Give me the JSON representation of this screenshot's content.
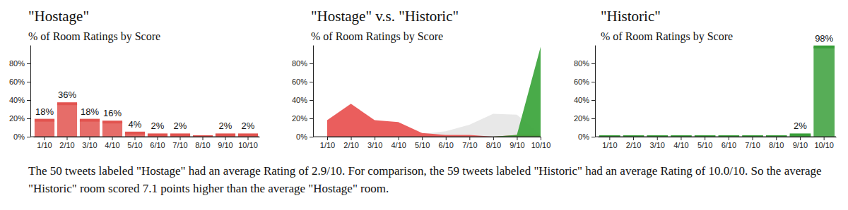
{
  "chart_data": [
    {
      "type": "bar",
      "title": "\"Hostage\"",
      "subtitle": "% of Room Ratings by Score",
      "categories": [
        "1/10",
        "2/10",
        "3/10",
        "4/10",
        "5/10",
        "6/10",
        "7/10",
        "8/10",
        "9/10",
        "10/10"
      ],
      "values": [
        18,
        36,
        18,
        16,
        4,
        2,
        2,
        0,
        2,
        2
      ],
      "value_labels": [
        "18%",
        "36%",
        "18%",
        "16%",
        "4%",
        "2%",
        "2%",
        null,
        "2%",
        "2%"
      ],
      "data_labels": true,
      "color": "#e2534f",
      "ylim": [
        0,
        100
      ],
      "yticks": [
        {
          "value": 0,
          "label": "0%"
        },
        {
          "value": 20,
          "label": "20%"
        },
        {
          "value": 40,
          "label": "40%"
        },
        {
          "value": 60,
          "label": "60%"
        },
        {
          "value": 80,
          "label": "80%"
        }
      ]
    },
    {
      "type": "area",
      "title": "\"Hostage\" v.s. \"Historic\"",
      "subtitle": "% of Room Ratings by Score",
      "categories": [
        "1/10",
        "2/10",
        "3/10",
        "4/10",
        "5/10",
        "6/10",
        "7/10",
        "8/10",
        "9/10",
        "10/10"
      ],
      "series": [
        {
          "color": "#e6e6e6",
          "values": [
            0,
            0,
            0,
            0,
            3,
            6,
            13,
            25,
            24,
            2
          ]
        },
        {
          "color": "#e8504f",
          "values": [
            18,
            36,
            18,
            16,
            4,
            2,
            2,
            0,
            2,
            2
          ]
        },
        {
          "color": "#3aa43a",
          "values": [
            0,
            0,
            0,
            0,
            0,
            0,
            0,
            0,
            2,
            98
          ]
        }
      ],
      "ylim": [
        0,
        100
      ],
      "yticks": [
        {
          "value": 0,
          "label": "0%"
        },
        {
          "value": 20,
          "label": "20%"
        },
        {
          "value": 40,
          "label": "40%"
        },
        {
          "value": 60,
          "label": "60%"
        },
        {
          "value": 80,
          "label": "80%"
        }
      ]
    },
    {
      "type": "bar",
      "title": "\"Historic\"",
      "subtitle": "% of Room Ratings by Score",
      "categories": [
        "1/10",
        "2/10",
        "3/10",
        "4/10",
        "5/10",
        "6/10",
        "7/10",
        "8/10",
        "9/10",
        "10/10"
      ],
      "values": [
        0,
        0,
        0,
        0,
        0,
        0,
        0,
        0,
        2,
        98
      ],
      "value_labels": [
        null,
        null,
        null,
        null,
        null,
        null,
        null,
        null,
        "2%",
        "98%"
      ],
      "data_labels": true,
      "color": "#3a9f3a",
      "ylim": [
        0,
        100
      ],
      "yticks": [
        {
          "value": 0,
          "label": "0%"
        },
        {
          "value": 20,
          "label": "20%"
        },
        {
          "value": 40,
          "label": "40%"
        },
        {
          "value": 60,
          "label": "60%"
        },
        {
          "value": 80,
          "label": "80%"
        }
      ]
    }
  ],
  "caption": "The 50 tweets labeled \"Hostage\" had an average Rating of 2.9/10. For comparison, the 59 tweets labeled \"Historic\" had an average Rating of 10.0/10. So the average \"Historic\" room scored 7.1 points higher than the average \"Hostage\" room."
}
